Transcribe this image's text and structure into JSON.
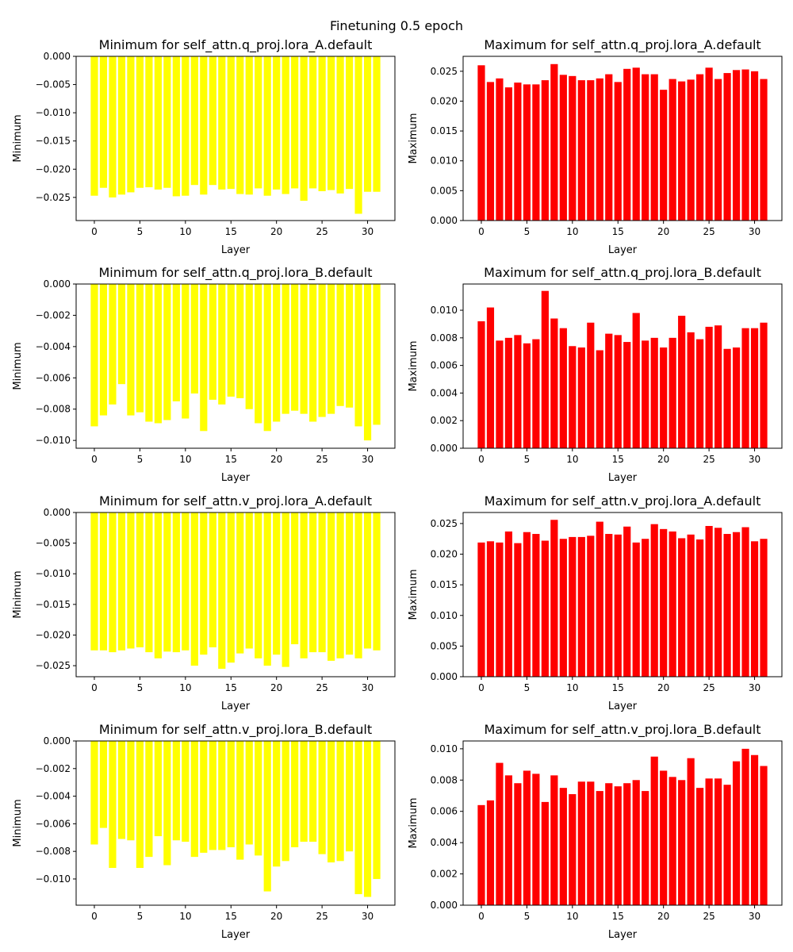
{
  "figure": {
    "suptitle": "Finetuning 0.5 epoch"
  },
  "chart_data": [
    {
      "type": "bar",
      "title": "Minimum for self_attn.q_proj.lora_A.default",
      "xlabel": "Layer",
      "ylabel": "Minimum",
      "color": "#ffff00",
      "ylim": [
        -0.0291,
        0.0
      ],
      "xlim": [
        -2.0,
        33.0
      ],
      "xticks": [
        0,
        5,
        10,
        15,
        20,
        25,
        30
      ],
      "xtick_labels": [
        "0",
        "5",
        "10",
        "15",
        "20",
        "25",
        "30"
      ],
      "yticks": [
        0.0,
        -0.005,
        -0.01,
        -0.015,
        -0.02,
        -0.025
      ],
      "ytick_labels": [
        "0.000",
        "−0.005",
        "−0.010",
        "−0.015",
        "−0.020",
        "−0.025"
      ],
      "categories": [
        0,
        1,
        2,
        3,
        4,
        5,
        6,
        7,
        8,
        9,
        10,
        11,
        12,
        13,
        14,
        15,
        16,
        17,
        18,
        19,
        20,
        21,
        22,
        23,
        24,
        25,
        26,
        27,
        28,
        29,
        30,
        31
      ],
      "values": [
        -0.0247,
        -0.0233,
        -0.025,
        -0.0245,
        -0.0241,
        -0.0233,
        -0.0232,
        -0.0236,
        -0.0233,
        -0.0248,
        -0.0247,
        -0.0228,
        -0.0245,
        -0.0228,
        -0.0236,
        -0.0235,
        -0.0244,
        -0.0245,
        -0.0234,
        -0.0247,
        -0.0236,
        -0.0244,
        -0.0234,
        -0.0256,
        -0.0234,
        -0.0239,
        -0.0237,
        -0.0243,
        -0.0235,
        -0.0279,
        -0.024,
        -0.024
      ]
    },
    {
      "type": "bar",
      "title": "Maximum for self_attn.q_proj.lora_A.default",
      "xlabel": "Layer",
      "ylabel": "Maximum",
      "color": "#ff0000",
      "ylim": [
        0.0,
        0.0275
      ],
      "xlim": [
        -2.0,
        33.0
      ],
      "xticks": [
        0,
        5,
        10,
        15,
        20,
        25,
        30
      ],
      "xtick_labels": [
        "0",
        "5",
        "10",
        "15",
        "20",
        "25",
        "30"
      ],
      "yticks": [
        0.0,
        0.005,
        0.01,
        0.015,
        0.02,
        0.025
      ],
      "ytick_labels": [
        "0.000",
        "0.005",
        "0.010",
        "0.015",
        "0.020",
        "0.025"
      ],
      "categories": [
        0,
        1,
        2,
        3,
        4,
        5,
        6,
        7,
        8,
        9,
        10,
        11,
        12,
        13,
        14,
        15,
        16,
        17,
        18,
        19,
        20,
        21,
        22,
        23,
        24,
        25,
        26,
        27,
        28,
        29,
        30,
        31
      ],
      "values": [
        0.026,
        0.0232,
        0.0238,
        0.0223,
        0.0231,
        0.0228,
        0.0228,
        0.0235,
        0.0262,
        0.0244,
        0.0242,
        0.0235,
        0.0235,
        0.0238,
        0.0245,
        0.0232,
        0.0254,
        0.0256,
        0.0245,
        0.0245,
        0.0219,
        0.0237,
        0.0233,
        0.0236,
        0.0245,
        0.0256,
        0.0237,
        0.0247,
        0.0252,
        0.0253,
        0.025,
        0.0237
      ]
    },
    {
      "type": "bar",
      "title": "Minimum for self_attn.q_proj.lora_B.default",
      "xlabel": "Layer",
      "ylabel": "Minimum",
      "color": "#ffff00",
      "ylim": [
        -0.0105,
        0.0
      ],
      "xlim": [
        -2.0,
        33.0
      ],
      "xticks": [
        0,
        5,
        10,
        15,
        20,
        25,
        30
      ],
      "xtick_labels": [
        "0",
        "5",
        "10",
        "15",
        "20",
        "25",
        "30"
      ],
      "yticks": [
        0.0,
        -0.002,
        -0.004,
        -0.006,
        -0.008,
        -0.01
      ],
      "ytick_labels": [
        "0.000",
        "−0.002",
        "−0.004",
        "−0.006",
        "−0.008",
        "−0.010"
      ],
      "categories": [
        0,
        1,
        2,
        3,
        4,
        5,
        6,
        7,
        8,
        9,
        10,
        11,
        12,
        13,
        14,
        15,
        16,
        17,
        18,
        19,
        20,
        21,
        22,
        23,
        24,
        25,
        26,
        27,
        28,
        29,
        30,
        31
      ],
      "values": [
        -0.0091,
        -0.0084,
        -0.0077,
        -0.0064,
        -0.0084,
        -0.0082,
        -0.0088,
        -0.0089,
        -0.0087,
        -0.0075,
        -0.0086,
        -0.007,
        -0.0094,
        -0.0074,
        -0.0077,
        -0.0072,
        -0.0073,
        -0.008,
        -0.0089,
        -0.0094,
        -0.0088,
        -0.0083,
        -0.0081,
        -0.0083,
        -0.0088,
        -0.0085,
        -0.0083,
        -0.0078,
        -0.0079,
        -0.0091,
        -0.01,
        -0.009
      ]
    },
    {
      "type": "bar",
      "title": "Maximum for self_attn.q_proj.lora_B.default",
      "xlabel": "Layer",
      "ylabel": "Maximum",
      "color": "#ff0000",
      "ylim": [
        0.0,
        0.0119
      ],
      "xlim": [
        -2.0,
        33.0
      ],
      "xticks": [
        0,
        5,
        10,
        15,
        20,
        25,
        30
      ],
      "xtick_labels": [
        "0",
        "5",
        "10",
        "15",
        "20",
        "25",
        "30"
      ],
      "yticks": [
        0.0,
        0.002,
        0.004,
        0.006,
        0.008,
        0.01
      ],
      "ytick_labels": [
        "0.000",
        "0.002",
        "0.004",
        "0.006",
        "0.008",
        "0.010"
      ],
      "categories": [
        0,
        1,
        2,
        3,
        4,
        5,
        6,
        7,
        8,
        9,
        10,
        11,
        12,
        13,
        14,
        15,
        16,
        17,
        18,
        19,
        20,
        21,
        22,
        23,
        24,
        25,
        26,
        27,
        28,
        29,
        30,
        31
      ],
      "values": [
        0.0092,
        0.0102,
        0.0078,
        0.008,
        0.0082,
        0.0076,
        0.0079,
        0.0114,
        0.0094,
        0.0087,
        0.0074,
        0.0073,
        0.0091,
        0.0071,
        0.0083,
        0.0082,
        0.0077,
        0.0098,
        0.0078,
        0.008,
        0.0073,
        0.008,
        0.0096,
        0.0084,
        0.0079,
        0.0088,
        0.0089,
        0.0072,
        0.0073,
        0.0087,
        0.0087,
        0.0091
      ]
    },
    {
      "type": "bar",
      "title": "Minimum for self_attn.v_proj.lora_A.default",
      "xlabel": "Layer",
      "ylabel": "Minimum",
      "color": "#ffff00",
      "ylim": [
        -0.0268,
        0.0
      ],
      "xlim": [
        -2.0,
        33.0
      ],
      "xticks": [
        0,
        5,
        10,
        15,
        20,
        25,
        30
      ],
      "xtick_labels": [
        "0",
        "5",
        "10",
        "15",
        "20",
        "25",
        "30"
      ],
      "yticks": [
        0.0,
        -0.005,
        -0.01,
        -0.015,
        -0.02,
        -0.025
      ],
      "ytick_labels": [
        "0.000",
        "−0.005",
        "−0.010",
        "−0.015",
        "−0.020",
        "−0.025"
      ],
      "categories": [
        0,
        1,
        2,
        3,
        4,
        5,
        6,
        7,
        8,
        9,
        10,
        11,
        12,
        13,
        14,
        15,
        16,
        17,
        18,
        19,
        20,
        21,
        22,
        23,
        24,
        25,
        26,
        27,
        28,
        29,
        30,
        31
      ],
      "values": [
        -0.0225,
        -0.0225,
        -0.0228,
        -0.0225,
        -0.0222,
        -0.022,
        -0.0228,
        -0.0238,
        -0.0227,
        -0.0228,
        -0.0225,
        -0.025,
        -0.0232,
        -0.022,
        -0.0255,
        -0.0245,
        -0.023,
        -0.0222,
        -0.0238,
        -0.025,
        -0.0232,
        -0.0252,
        -0.0215,
        -0.0238,
        -0.0228,
        -0.0228,
        -0.0242,
        -0.0238,
        -0.0232,
        -0.0238,
        -0.0222,
        -0.0225
      ]
    },
    {
      "type": "bar",
      "title": "Maximum for self_attn.v_proj.lora_A.default",
      "xlabel": "Layer",
      "ylabel": "Maximum",
      "color": "#ff0000",
      "ylim": [
        0.0,
        0.0268
      ],
      "xlim": [
        -2.0,
        33.0
      ],
      "xticks": [
        0,
        5,
        10,
        15,
        20,
        25,
        30
      ],
      "xtick_labels": [
        "0",
        "5",
        "10",
        "15",
        "20",
        "25",
        "30"
      ],
      "yticks": [
        0.0,
        0.005,
        0.01,
        0.015,
        0.02,
        0.025
      ],
      "ytick_labels": [
        "0.000",
        "0.005",
        "0.010",
        "0.015",
        "0.020",
        "0.025"
      ],
      "categories": [
        0,
        1,
        2,
        3,
        4,
        5,
        6,
        7,
        8,
        9,
        10,
        11,
        12,
        13,
        14,
        15,
        16,
        17,
        18,
        19,
        20,
        21,
        22,
        23,
        24,
        25,
        26,
        27,
        28,
        29,
        30,
        31
      ],
      "values": [
        0.0219,
        0.0221,
        0.0219,
        0.0237,
        0.0218,
        0.0236,
        0.0233,
        0.0222,
        0.0256,
        0.0225,
        0.0228,
        0.0228,
        0.023,
        0.0253,
        0.0233,
        0.0232,
        0.0245,
        0.0219,
        0.0225,
        0.0249,
        0.0241,
        0.0237,
        0.0226,
        0.0232,
        0.0224,
        0.0246,
        0.0243,
        0.0233,
        0.0236,
        0.0244,
        0.0221,
        0.0225
      ]
    },
    {
      "type": "bar",
      "title": "Minimum for self_attn.v_proj.lora_B.default",
      "xlabel": "Layer",
      "ylabel": "Minimum",
      "color": "#ffff00",
      "ylim": [
        -0.0119,
        0.0
      ],
      "xlim": [
        -2.0,
        33.0
      ],
      "xticks": [
        0,
        5,
        10,
        15,
        20,
        25,
        30
      ],
      "xtick_labels": [
        "0",
        "5",
        "10",
        "15",
        "20",
        "25",
        "30"
      ],
      "yticks": [
        0.0,
        -0.002,
        -0.004,
        -0.006,
        -0.008,
        -0.01
      ],
      "ytick_labels": [
        "0.000",
        "−0.002",
        "−0.004",
        "−0.006",
        "−0.008",
        "−0.010"
      ],
      "categories": [
        0,
        1,
        2,
        3,
        4,
        5,
        6,
        7,
        8,
        9,
        10,
        11,
        12,
        13,
        14,
        15,
        16,
        17,
        18,
        19,
        20,
        21,
        22,
        23,
        24,
        25,
        26,
        27,
        28,
        29,
        30,
        31
      ],
      "values": [
        -0.0075,
        -0.0063,
        -0.0092,
        -0.0071,
        -0.0072,
        -0.0092,
        -0.0084,
        -0.0069,
        -0.009,
        -0.0072,
        -0.0073,
        -0.0084,
        -0.0081,
        -0.0079,
        -0.0079,
        -0.0077,
        -0.0086,
        -0.0075,
        -0.0083,
        -0.0109,
        -0.0091,
        -0.0087,
        -0.0077,
        -0.0073,
        -0.0073,
        -0.0082,
        -0.0088,
        -0.0087,
        -0.008,
        -0.0111,
        -0.0113,
        -0.01
      ]
    },
    {
      "type": "bar",
      "title": "Maximum for self_attn.v_proj.lora_B.default",
      "xlabel": "Layer",
      "ylabel": "Maximum",
      "color": "#ff0000",
      "ylim": [
        0.0,
        0.0105
      ],
      "xlim": [
        -2.0,
        33.0
      ],
      "xticks": [
        0,
        5,
        10,
        15,
        20,
        25,
        30
      ],
      "xtick_labels": [
        "0",
        "5",
        "10",
        "15",
        "20",
        "25",
        "30"
      ],
      "yticks": [
        0.0,
        0.002,
        0.004,
        0.006,
        0.008,
        0.01
      ],
      "ytick_labels": [
        "0.000",
        "0.002",
        "0.004",
        "0.006",
        "0.008",
        "0.010"
      ],
      "categories": [
        0,
        1,
        2,
        3,
        4,
        5,
        6,
        7,
        8,
        9,
        10,
        11,
        12,
        13,
        14,
        15,
        16,
        17,
        18,
        19,
        20,
        21,
        22,
        23,
        24,
        25,
        26,
        27,
        28,
        29,
        30,
        31
      ],
      "values": [
        0.0064,
        0.0067,
        0.0091,
        0.0083,
        0.0078,
        0.0086,
        0.0084,
        0.0066,
        0.0083,
        0.0075,
        0.0071,
        0.0079,
        0.0079,
        0.0073,
        0.0078,
        0.0076,
        0.0078,
        0.008,
        0.0073,
        0.0095,
        0.0086,
        0.0082,
        0.008,
        0.0094,
        0.0075,
        0.0081,
        0.0081,
        0.0077,
        0.0092,
        0.01,
        0.0096,
        0.0089
      ]
    }
  ]
}
